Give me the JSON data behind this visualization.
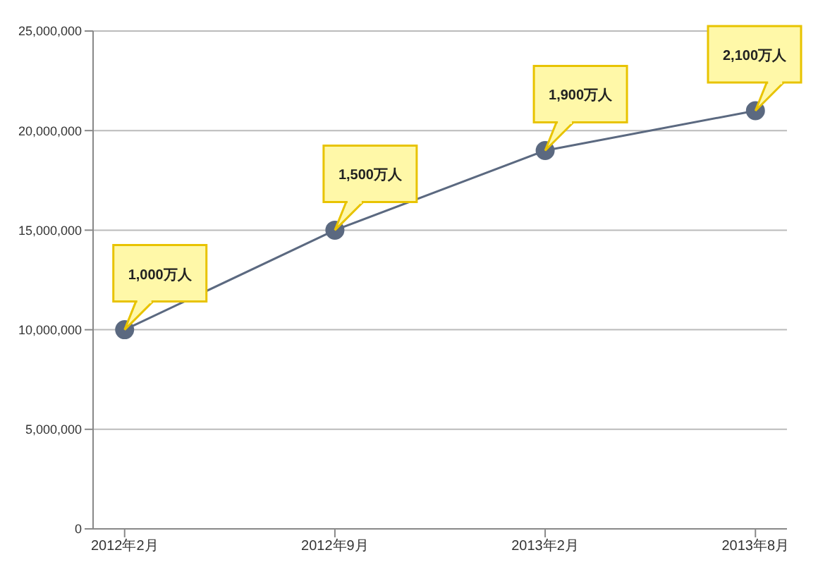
{
  "chart_data": {
    "type": "line",
    "categories": [
      "2012年2月",
      "2012年9月",
      "2013年2月",
      "2013年8月"
    ],
    "series": [
      {
        "color": "#5b6980",
        "values": [
          10000000,
          15000000,
          19000000,
          21000000
        ]
      }
    ],
    "annotations": [
      "1,000万人",
      "1,500万人",
      "1,900万人",
      "2,100万人"
    ],
    "ylim": [
      0,
      25000000
    ],
    "yticks": [
      0,
      {
        "value": 5000000,
        "label": "5,000,000"
      },
      {
        "value": 10000000,
        "label": "10,000,000"
      },
      {
        "value": 15000000,
        "label": "15,000,000"
      },
      {
        "value": 20000000,
        "label": "20,000,000"
      },
      {
        "value": 25000000,
        "label": "25,000,000"
      }
    ],
    "grid": "y",
    "marker": "circle",
    "line_style": "solid"
  }
}
